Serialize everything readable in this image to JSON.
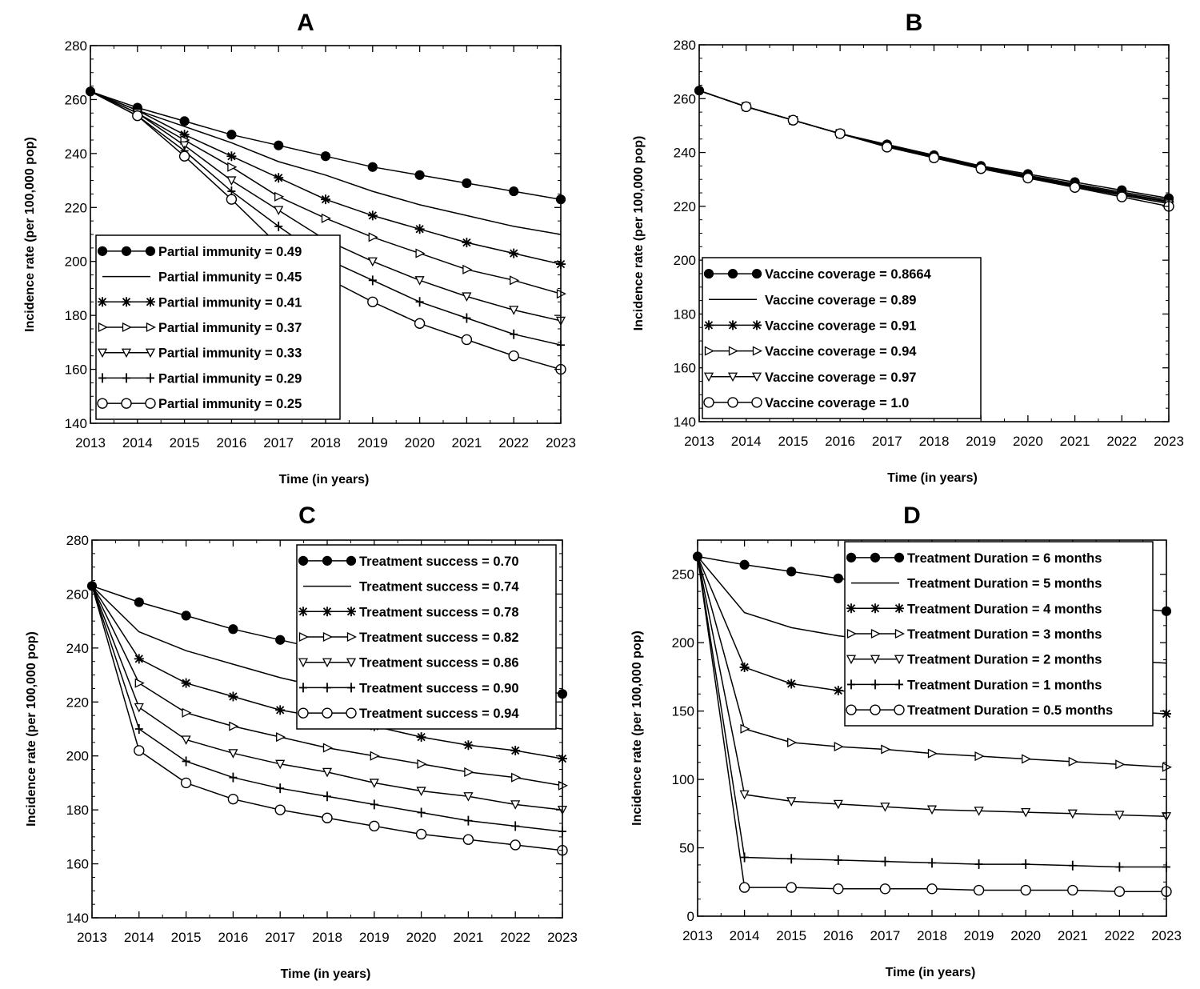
{
  "chart_data": [
    {
      "type": "line",
      "title": "A",
      "xlabel": "Time (in years)",
      "ylabel": "Incidence rate (per 100,000 pop)",
      "x": [
        2013,
        2014,
        2015,
        2016,
        2017,
        2018,
        2019,
        2020,
        2021,
        2022,
        2023
      ],
      "xlim": [
        2013,
        2023
      ],
      "ylim": [
        140,
        280
      ],
      "yticks": [
        140,
        160,
        180,
        200,
        220,
        240,
        260,
        280
      ],
      "legend_position": "bottom-left",
      "grid": false,
      "series": [
        {
          "name": "Partial immunity = 0.49",
          "marker": "filled-circle",
          "values": [
            263,
            257,
            252,
            247,
            243,
            239,
            235,
            232,
            229,
            226,
            223
          ]
        },
        {
          "name": "Partial immunity = 0.45",
          "marker": "none",
          "values": [
            263,
            256,
            250,
            244,
            237,
            232,
            226,
            221,
            217,
            213,
            210
          ]
        },
        {
          "name": "Partial immunity = 0.41",
          "marker": "asterisk",
          "values": [
            263,
            256,
            247,
            239,
            231,
            223,
            217,
            212,
            207,
            203,
            199
          ]
        },
        {
          "name": "Partial immunity = 0.37",
          "marker": "right-triangle",
          "values": [
            263,
            255,
            245,
            235,
            224,
            216,
            209,
            203,
            197,
            193,
            188
          ]
        },
        {
          "name": "Partial immunity = 0.33",
          "marker": "down-triangle",
          "values": [
            263,
            255,
            243,
            230,
            219,
            208,
            200,
            193,
            187,
            182,
            178
          ]
        },
        {
          "name": "Partial immunity = 0.29",
          "marker": "plus",
          "values": [
            263,
            254,
            241,
            226,
            213,
            201,
            193,
            185,
            179,
            173,
            169
          ]
        },
        {
          "name": "Partial immunity = 0.25",
          "marker": "open-circle",
          "values": [
            263,
            254,
            239,
            223,
            206,
            194,
            185,
            177,
            171,
            165,
            160
          ]
        }
      ]
    },
    {
      "type": "line",
      "title": "B",
      "xlabel": "Time (in years)",
      "ylabel": "Incidence rate (per 100,000 pop)",
      "x": [
        2013,
        2014,
        2015,
        2016,
        2017,
        2018,
        2019,
        2020,
        2021,
        2022,
        2023
      ],
      "xlim": [
        2013,
        2023
      ],
      "ylim": [
        140,
        280
      ],
      "yticks": [
        140,
        160,
        180,
        200,
        220,
        240,
        260,
        280
      ],
      "legend_position": "bottom-left",
      "grid": false,
      "series": [
        {
          "name": "Vaccine coverage = 0.8664",
          "marker": "filled-circle",
          "values": [
            263,
            257,
            252,
            247,
            243,
            239,
            235,
            232,
            229,
            226,
            223
          ]
        },
        {
          "name": "Vaccine coverage = 0.89",
          "marker": "none",
          "values": [
            263,
            257,
            252,
            247,
            242.8,
            238.7,
            234.7,
            231.5,
            228.3,
            225.3,
            222.4
          ]
        },
        {
          "name": "Vaccine coverage = 0.91",
          "marker": "asterisk",
          "values": [
            263,
            257,
            252,
            247,
            242.6,
            238.4,
            234.4,
            231.1,
            227.9,
            224.8,
            221.9
          ]
        },
        {
          "name": "Vaccine coverage = 0.94",
          "marker": "right-triangle",
          "values": [
            263,
            257,
            252,
            247,
            242.4,
            238.2,
            234.2,
            230.8,
            227.6,
            224.5,
            221.5
          ]
        },
        {
          "name": "Vaccine coverage = 0.97",
          "marker": "down-triangle",
          "values": [
            263,
            257,
            252,
            247,
            242.2,
            238,
            234,
            230.5,
            227.2,
            224.1,
            221
          ]
        },
        {
          "name": "Vaccine coverage = 1.0",
          "marker": "open-circle",
          "values": [
            263,
            257,
            252,
            247,
            242,
            238,
            234,
            230.5,
            227,
            223.5,
            220
          ]
        }
      ]
    },
    {
      "type": "line",
      "title": "C",
      "xlabel": "Time (in years)",
      "ylabel": "Incidence rate (per 100,000 pop)",
      "x": [
        2013,
        2014,
        2015,
        2016,
        2017,
        2018,
        2019,
        2020,
        2021,
        2022,
        2023
      ],
      "xlim": [
        2013,
        2023
      ],
      "ylim": [
        140,
        280
      ],
      "yticks": [
        140,
        160,
        180,
        200,
        220,
        240,
        260,
        280
      ],
      "legend_position": "top-right",
      "grid": false,
      "series": [
        {
          "name": "Treatment success = 0.70",
          "marker": "filled-circle",
          "values": [
            263,
            257,
            252,
            247,
            243,
            239,
            235,
            232,
            229,
            226,
            223
          ]
        },
        {
          "name": "Treatment success = 0.74",
          "marker": "none",
          "values": [
            263,
            246,
            239,
            234,
            229,
            225,
            221,
            218,
            215,
            212,
            210
          ]
        },
        {
          "name": "Treatment success = 0.78",
          "marker": "asterisk",
          "values": [
            263,
            236,
            227,
            222,
            217,
            214,
            211,
            207,
            204,
            202,
            199
          ]
        },
        {
          "name": "Treatment success = 0.82",
          "marker": "right-triangle",
          "values": [
            263,
            227,
            216,
            211,
            207,
            203,
            200,
            197,
            194,
            192,
            189
          ]
        },
        {
          "name": "Treatment success = 0.86",
          "marker": "down-triangle",
          "values": [
            263,
            218,
            206,
            201,
            197,
            194,
            190,
            187,
            185,
            182,
            180
          ]
        },
        {
          "name": "Treatment success = 0.90",
          "marker": "plus",
          "values": [
            263,
            210,
            198,
            192,
            188,
            185,
            182,
            179,
            176,
            174,
            172
          ]
        },
        {
          "name": "Treatment success = 0.94",
          "marker": "open-circle",
          "values": [
            263,
            202,
            190,
            184,
            180,
            177,
            174,
            171,
            169,
            167,
            165
          ]
        }
      ]
    },
    {
      "type": "line",
      "title": "D",
      "xlabel": "Time (in years)",
      "ylabel": "Incidence rate (per 100,000 pop)",
      "x": [
        2013,
        2014,
        2015,
        2016,
        2017,
        2018,
        2019,
        2020,
        2021,
        2022,
        2023
      ],
      "xlim": [
        2013,
        2023
      ],
      "ylim": [
        0,
        275
      ],
      "yticks": [
        0,
        50,
        100,
        150,
        200,
        250
      ],
      "legend_position": "top-right",
      "grid": false,
      "series": [
        {
          "name": "Treatment Duration = 6 months",
          "marker": "filled-circle",
          "values": [
            263,
            257,
            252,
            247,
            243,
            239,
            235,
            232,
            229,
            226,
            223
          ]
        },
        {
          "name": "Treatment Duration = 5 months",
          "marker": "none",
          "values": [
            263,
            222,
            211,
            205,
            201,
            198,
            195,
            192,
            190,
            187,
            185
          ]
        },
        {
          "name": "Treatment Duration = 4 months",
          "marker": "asterisk",
          "values": [
            263,
            182,
            170,
            165,
            162,
            159,
            157,
            155,
            152,
            150,
            148
          ]
        },
        {
          "name": "Treatment Duration = 3 months",
          "marker": "right-triangle",
          "values": [
            263,
            137,
            127,
            124,
            122,
            119,
            117,
            115,
            113,
            111,
            109
          ]
        },
        {
          "name": "Treatment Duration = 2 months",
          "marker": "down-triangle",
          "values": [
            263,
            89,
            84,
            82,
            80,
            78,
            77,
            76,
            75,
            74,
            73
          ]
        },
        {
          "name": "Treatment Duration = 1 months",
          "marker": "plus",
          "values": [
            263,
            43,
            42,
            41,
            40,
            39,
            38,
            38,
            37,
            36,
            36
          ]
        },
        {
          "name": "Treatment Duration = 0.5 months",
          "marker": "open-circle",
          "values": [
            263,
            21,
            21,
            20,
            20,
            20,
            19,
            19,
            19,
            18,
            18
          ]
        }
      ]
    }
  ]
}
